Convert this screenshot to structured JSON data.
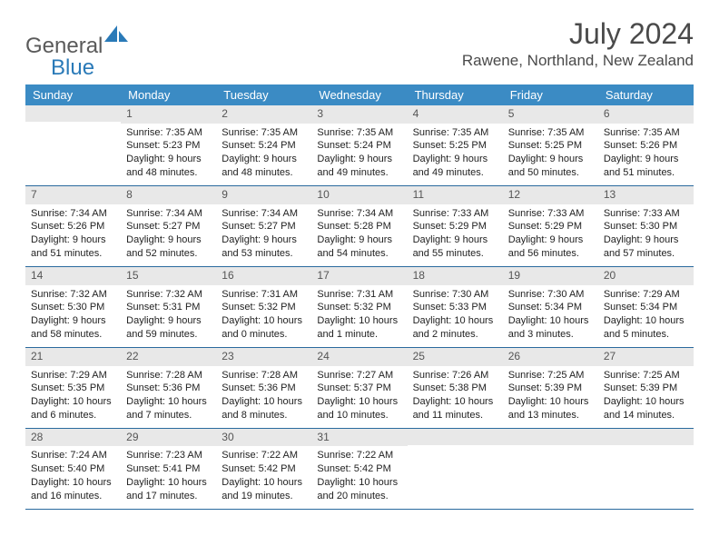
{
  "brand": {
    "name_part1": "General",
    "name_part2": "Blue",
    "color_text": "#5a5a5a",
    "color_blue": "#2a7ab8",
    "icon_fill": "#2a7ab8"
  },
  "title": "July 2024",
  "location": "Rawene, Northland, New Zealand",
  "header_bg": "#3b8bc4",
  "row_border": "#2a6a9e",
  "daynum_bg": "#e8e8e8",
  "weekdays": [
    "Sunday",
    "Monday",
    "Tuesday",
    "Wednesday",
    "Thursday",
    "Friday",
    "Saturday"
  ],
  "weeks": [
    [
      {
        "n": "",
        "sunrise": "",
        "sunset": "",
        "daylight": ""
      },
      {
        "n": "1",
        "sunrise": "Sunrise: 7:35 AM",
        "sunset": "Sunset: 5:23 PM",
        "daylight": "Daylight: 9 hours and 48 minutes."
      },
      {
        "n": "2",
        "sunrise": "Sunrise: 7:35 AM",
        "sunset": "Sunset: 5:24 PM",
        "daylight": "Daylight: 9 hours and 48 minutes."
      },
      {
        "n": "3",
        "sunrise": "Sunrise: 7:35 AM",
        "sunset": "Sunset: 5:24 PM",
        "daylight": "Daylight: 9 hours and 49 minutes."
      },
      {
        "n": "4",
        "sunrise": "Sunrise: 7:35 AM",
        "sunset": "Sunset: 5:25 PM",
        "daylight": "Daylight: 9 hours and 49 minutes."
      },
      {
        "n": "5",
        "sunrise": "Sunrise: 7:35 AM",
        "sunset": "Sunset: 5:25 PM",
        "daylight": "Daylight: 9 hours and 50 minutes."
      },
      {
        "n": "6",
        "sunrise": "Sunrise: 7:35 AM",
        "sunset": "Sunset: 5:26 PM",
        "daylight": "Daylight: 9 hours and 51 minutes."
      }
    ],
    [
      {
        "n": "7",
        "sunrise": "Sunrise: 7:34 AM",
        "sunset": "Sunset: 5:26 PM",
        "daylight": "Daylight: 9 hours and 51 minutes."
      },
      {
        "n": "8",
        "sunrise": "Sunrise: 7:34 AM",
        "sunset": "Sunset: 5:27 PM",
        "daylight": "Daylight: 9 hours and 52 minutes."
      },
      {
        "n": "9",
        "sunrise": "Sunrise: 7:34 AM",
        "sunset": "Sunset: 5:27 PM",
        "daylight": "Daylight: 9 hours and 53 minutes."
      },
      {
        "n": "10",
        "sunrise": "Sunrise: 7:34 AM",
        "sunset": "Sunset: 5:28 PM",
        "daylight": "Daylight: 9 hours and 54 minutes."
      },
      {
        "n": "11",
        "sunrise": "Sunrise: 7:33 AM",
        "sunset": "Sunset: 5:29 PM",
        "daylight": "Daylight: 9 hours and 55 minutes."
      },
      {
        "n": "12",
        "sunrise": "Sunrise: 7:33 AM",
        "sunset": "Sunset: 5:29 PM",
        "daylight": "Daylight: 9 hours and 56 minutes."
      },
      {
        "n": "13",
        "sunrise": "Sunrise: 7:33 AM",
        "sunset": "Sunset: 5:30 PM",
        "daylight": "Daylight: 9 hours and 57 minutes."
      }
    ],
    [
      {
        "n": "14",
        "sunrise": "Sunrise: 7:32 AM",
        "sunset": "Sunset: 5:30 PM",
        "daylight": "Daylight: 9 hours and 58 minutes."
      },
      {
        "n": "15",
        "sunrise": "Sunrise: 7:32 AM",
        "sunset": "Sunset: 5:31 PM",
        "daylight": "Daylight: 9 hours and 59 minutes."
      },
      {
        "n": "16",
        "sunrise": "Sunrise: 7:31 AM",
        "sunset": "Sunset: 5:32 PM",
        "daylight": "Daylight: 10 hours and 0 minutes."
      },
      {
        "n": "17",
        "sunrise": "Sunrise: 7:31 AM",
        "sunset": "Sunset: 5:32 PM",
        "daylight": "Daylight: 10 hours and 1 minute."
      },
      {
        "n": "18",
        "sunrise": "Sunrise: 7:30 AM",
        "sunset": "Sunset: 5:33 PM",
        "daylight": "Daylight: 10 hours and 2 minutes."
      },
      {
        "n": "19",
        "sunrise": "Sunrise: 7:30 AM",
        "sunset": "Sunset: 5:34 PM",
        "daylight": "Daylight: 10 hours and 3 minutes."
      },
      {
        "n": "20",
        "sunrise": "Sunrise: 7:29 AM",
        "sunset": "Sunset: 5:34 PM",
        "daylight": "Daylight: 10 hours and 5 minutes."
      }
    ],
    [
      {
        "n": "21",
        "sunrise": "Sunrise: 7:29 AM",
        "sunset": "Sunset: 5:35 PM",
        "daylight": "Daylight: 10 hours and 6 minutes."
      },
      {
        "n": "22",
        "sunrise": "Sunrise: 7:28 AM",
        "sunset": "Sunset: 5:36 PM",
        "daylight": "Daylight: 10 hours and 7 minutes."
      },
      {
        "n": "23",
        "sunrise": "Sunrise: 7:28 AM",
        "sunset": "Sunset: 5:36 PM",
        "daylight": "Daylight: 10 hours and 8 minutes."
      },
      {
        "n": "24",
        "sunrise": "Sunrise: 7:27 AM",
        "sunset": "Sunset: 5:37 PM",
        "daylight": "Daylight: 10 hours and 10 minutes."
      },
      {
        "n": "25",
        "sunrise": "Sunrise: 7:26 AM",
        "sunset": "Sunset: 5:38 PM",
        "daylight": "Daylight: 10 hours and 11 minutes."
      },
      {
        "n": "26",
        "sunrise": "Sunrise: 7:25 AM",
        "sunset": "Sunset: 5:39 PM",
        "daylight": "Daylight: 10 hours and 13 minutes."
      },
      {
        "n": "27",
        "sunrise": "Sunrise: 7:25 AM",
        "sunset": "Sunset: 5:39 PM",
        "daylight": "Daylight: 10 hours and 14 minutes."
      }
    ],
    [
      {
        "n": "28",
        "sunrise": "Sunrise: 7:24 AM",
        "sunset": "Sunset: 5:40 PM",
        "daylight": "Daylight: 10 hours and 16 minutes."
      },
      {
        "n": "29",
        "sunrise": "Sunrise: 7:23 AM",
        "sunset": "Sunset: 5:41 PM",
        "daylight": "Daylight: 10 hours and 17 minutes."
      },
      {
        "n": "30",
        "sunrise": "Sunrise: 7:22 AM",
        "sunset": "Sunset: 5:42 PM",
        "daylight": "Daylight: 10 hours and 19 minutes."
      },
      {
        "n": "31",
        "sunrise": "Sunrise: 7:22 AM",
        "sunset": "Sunset: 5:42 PM",
        "daylight": "Daylight: 10 hours and 20 minutes."
      },
      {
        "n": "",
        "sunrise": "",
        "sunset": "",
        "daylight": ""
      },
      {
        "n": "",
        "sunrise": "",
        "sunset": "",
        "daylight": ""
      },
      {
        "n": "",
        "sunrise": "",
        "sunset": "",
        "daylight": ""
      }
    ]
  ]
}
